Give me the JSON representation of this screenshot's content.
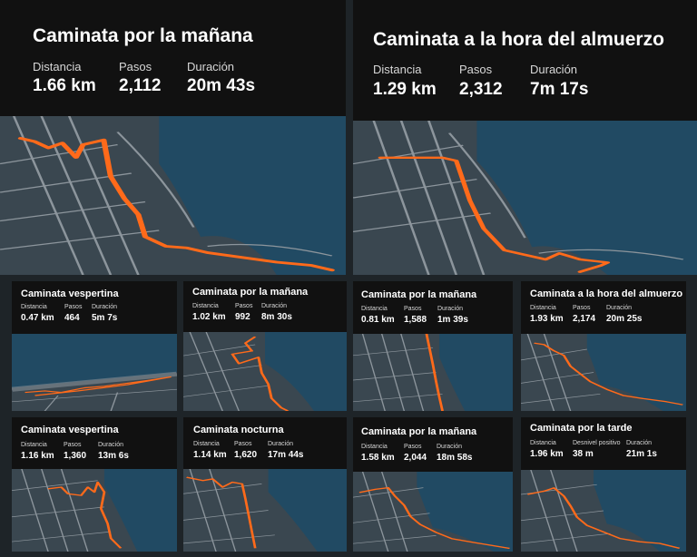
{
  "activities": [
    {
      "title": "Caminata por la mañana",
      "distance_label": "Distancia",
      "distance": "1.66 km",
      "steps_label": "Pasos",
      "steps": "2,112",
      "duration_label": "Duración",
      "duration": "20m 43s"
    },
    {
      "title": "Caminata a la hora del almuerzo",
      "distance_label": "Distancia",
      "distance": "1.29 km",
      "steps_label": "Pasos",
      "steps": "2,312",
      "duration_label": "Duración",
      "duration": "7m 17s"
    },
    {
      "title": "Caminata vespertina",
      "distance_label": "Distancia",
      "distance": "0.47 km",
      "steps_label": "Pasos",
      "steps": "464",
      "duration_label": "Duración",
      "duration": "5m 7s"
    },
    {
      "title": "Caminata por la mañana",
      "distance_label": "Distancia",
      "distance": "1.02 km",
      "steps_label": "Pasos",
      "steps": "992",
      "duration_label": "Duración",
      "duration": "8m 30s"
    },
    {
      "title": "Caminata por la mañana",
      "distance_label": "Distancia",
      "distance": "0.81 km",
      "steps_label": "Pasos",
      "steps": "1,588",
      "duration_label": "Duración",
      "duration": "1m 39s"
    },
    {
      "title": "Caminata a la hora del almuerzo",
      "distance_label": "Distancia",
      "distance": "1.93 km",
      "steps_label": "Pasos",
      "steps": "2,174",
      "duration_label": "Duración",
      "duration": "20m 25s"
    },
    {
      "title": "Caminata vespertina",
      "distance_label": "Distancia",
      "distance": "1.16 km",
      "steps_label": "Pasos",
      "steps": "1,360",
      "duration_label": "Duración",
      "duration": "13m 6s"
    },
    {
      "title": "Caminata nocturna",
      "distance_label": "Distancia",
      "distance": "1.14 km",
      "steps_label": "Pasos",
      "steps": "1,620",
      "duration_label": "Duración",
      "duration": "17m 44s"
    },
    {
      "title": "Caminata por la mañana",
      "distance_label": "Distancia",
      "distance": "1.58 km",
      "steps_label": "Pasos",
      "steps": "2,044",
      "duration_label": "Duración",
      "duration": "18m 58s"
    },
    {
      "title": "Caminata por la tarde",
      "distance_label": "Distancia",
      "distance": "1.96 km",
      "steps_label": "Desnivel positivo",
      "steps": "38 m",
      "duration_label": "Duración",
      "duration": "21m 1s"
    }
  ],
  "colors": {
    "route": "#ff6a1a",
    "header": "#111111",
    "land": "#3a4750",
    "water": "#214a63",
    "road": "#8c959c"
  }
}
